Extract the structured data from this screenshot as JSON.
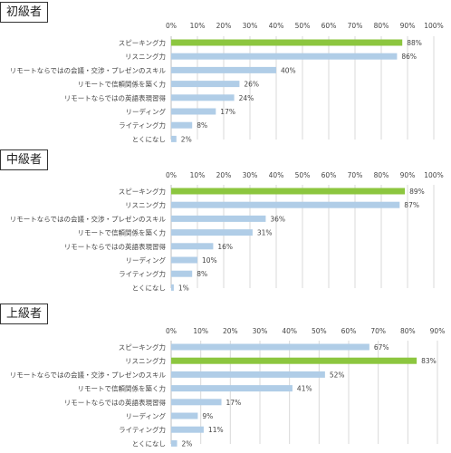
{
  "colors": {
    "highlight": "#8cc63f",
    "normal": "#b0cde7",
    "grid": "#d9d9d9",
    "border": "#333333"
  },
  "chart_data": [
    {
      "type": "bar",
      "orientation": "horizontal",
      "title": "初級者",
      "categories": [
        "スピーキング力",
        "リスニング力",
        "リモートならではの会議・交渉・プレゼンのスキル",
        "リモートで信頼関係を築く力",
        "リモートならではの英語表現習得",
        "リーディング",
        "ライティング力",
        "とくになし"
      ],
      "values": [
        88,
        86,
        40,
        26,
        24,
        17,
        8,
        2
      ],
      "value_labels": [
        "88%",
        "86%",
        "40%",
        "26%",
        "24%",
        "17%",
        "8%",
        "2%"
      ],
      "highlight_index": 0,
      "xlim": [
        0,
        100
      ],
      "ticks": [
        "0%",
        "10%",
        "20%",
        "30%",
        "40%",
        "50%",
        "60%",
        "70%",
        "80%",
        "90%",
        "100%"
      ],
      "grid": true
    },
    {
      "type": "bar",
      "orientation": "horizontal",
      "title": "中級者",
      "categories": [
        "スピーキング力",
        "リスニング力",
        "リモートならではの会議・交渉・プレゼンのスキル",
        "リモートで信頼関係を築く力",
        "リモートならではの英語表現習得",
        "リーディング",
        "ライティング力",
        "とくになし"
      ],
      "values": [
        89,
        87,
        36,
        31,
        16,
        10,
        8,
        1
      ],
      "value_labels": [
        "89%",
        "87%",
        "36%",
        "31%",
        "16%",
        "10%",
        "8%",
        "1%"
      ],
      "highlight_index": 0,
      "xlim": [
        0,
        100
      ],
      "ticks": [
        "0%",
        "10%",
        "20%",
        "30%",
        "40%",
        "50%",
        "60%",
        "70%",
        "80%",
        "90%",
        "100%"
      ],
      "grid": true
    },
    {
      "type": "bar",
      "orientation": "horizontal",
      "title": "上級者",
      "categories": [
        "スピーキング力",
        "リスニング力",
        "リモートならではの会議・交渉・プレゼンのスキル",
        "リモートで信頼関係を築く力",
        "リモートならではの英語表現習得",
        "リーディング",
        "ライティング力",
        "とくになし"
      ],
      "values": [
        67,
        83,
        52,
        41,
        17,
        9,
        11,
        2
      ],
      "value_labels": [
        "67%",
        "83%",
        "52%",
        "41%",
        "17%",
        "9%",
        "11%",
        "2%"
      ],
      "highlight_index": 1,
      "xlim": [
        0,
        90
      ],
      "ticks": [
        "0%",
        "10%",
        "20%",
        "30%",
        "40%",
        "50%",
        "60%",
        "70%",
        "80%",
        "90%"
      ],
      "grid": true
    }
  ]
}
